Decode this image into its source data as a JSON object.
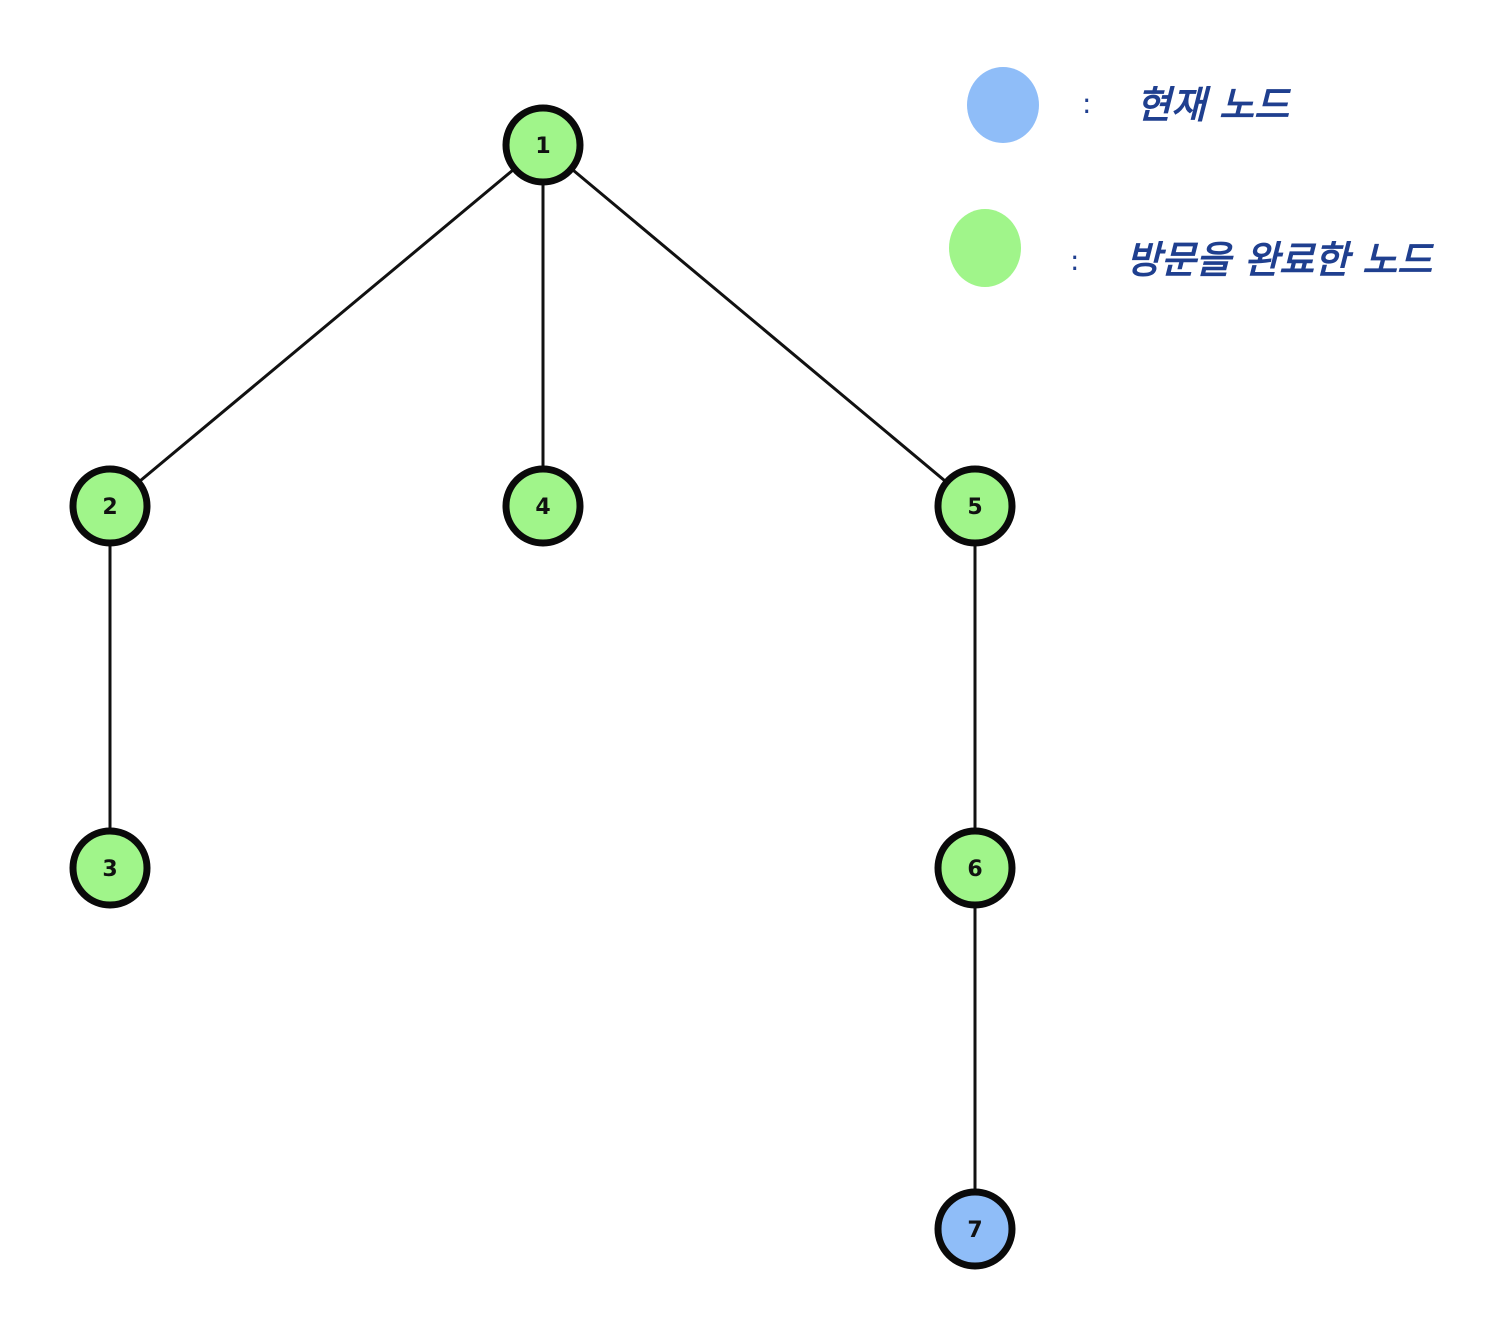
{
  "diagram": {
    "type": "tree",
    "nodes": [
      {
        "id": "1",
        "label": "1",
        "state": "visited"
      },
      {
        "id": "2",
        "label": "2",
        "state": "visited"
      },
      {
        "id": "4",
        "label": "4",
        "state": "visited"
      },
      {
        "id": "5",
        "label": "5",
        "state": "visited"
      },
      {
        "id": "3",
        "label": "3",
        "state": "visited"
      },
      {
        "id": "6",
        "label": "6",
        "state": "visited"
      },
      {
        "id": "7",
        "label": "7",
        "state": "current"
      }
    ],
    "edges": [
      {
        "from": "1",
        "to": "2"
      },
      {
        "from": "1",
        "to": "4"
      },
      {
        "from": "1",
        "to": "5"
      },
      {
        "from": "2",
        "to": "3"
      },
      {
        "from": "5",
        "to": "6"
      },
      {
        "from": "6",
        "to": "7"
      }
    ],
    "colors": {
      "visited": "#a0f58a",
      "current": "#8fbdf8",
      "border": "#0a0a0a",
      "edge": "#111111",
      "legend_text": "#1f3f8f"
    }
  },
  "legend": {
    "current": {
      "colon": ":",
      "text": "현재 노드"
    },
    "visited": {
      "colon": ":",
      "text": "방문을 완료한 노드"
    }
  }
}
